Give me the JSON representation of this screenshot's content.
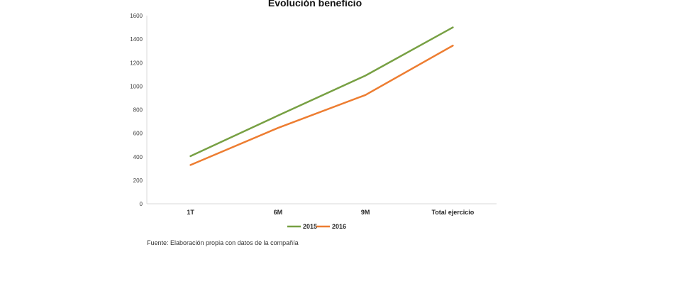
{
  "chart_data": {
    "type": "line",
    "title": "Evolución beneficio",
    "categories": [
      "1T",
      "6M",
      "9M",
      "Total ejercicio"
    ],
    "ylim": [
      0,
      1600
    ],
    "yticks": [
      0,
      200,
      400,
      600,
      800,
      1000,
      1200,
      1400,
      1600
    ],
    "grid": false,
    "legend_position": "bottom",
    "series": [
      {
        "name": "2015",
        "color": "#77a043",
        "values": [
          405,
          750,
          1090,
          1500
        ]
      },
      {
        "name": "2016",
        "color": "#ed7d31",
        "values": [
          330,
          645,
          925,
          1345
        ]
      }
    ]
  },
  "footer": {
    "source": "Fuente: Elaboración propia con datos de la compañía"
  }
}
